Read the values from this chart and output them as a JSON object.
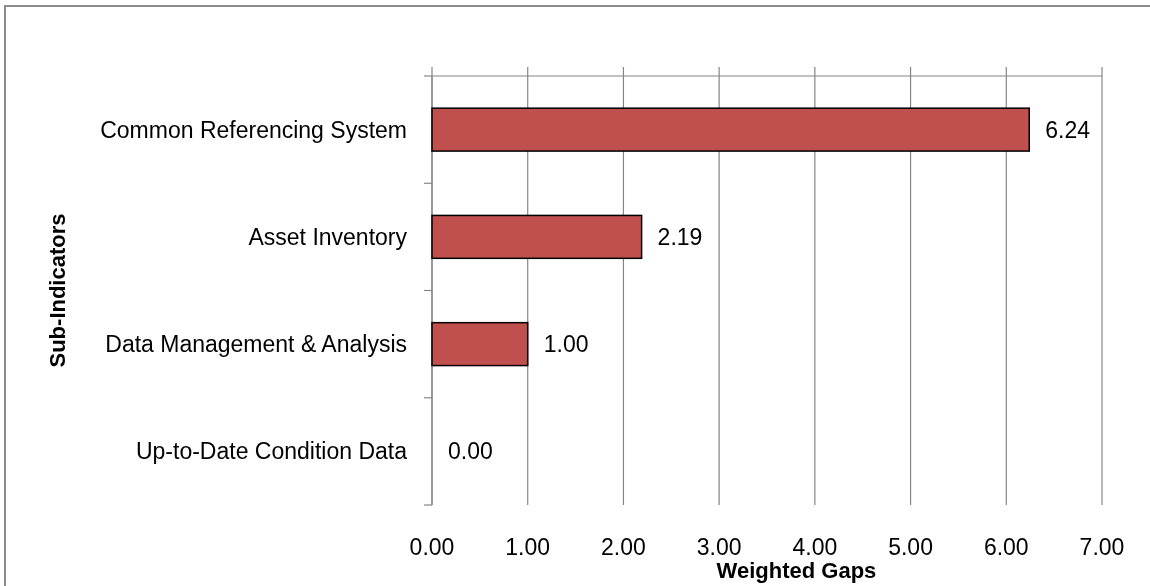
{
  "chart_data": {
    "type": "bar",
    "orientation": "horizontal",
    "xlabel": "Weighted Gaps",
    "ylabel": "Sub-Indicators",
    "categories": [
      "Common Referencing System",
      "Asset Inventory",
      "Data Management & Analysis",
      "Up-to-Date Condition Data"
    ],
    "values": [
      6.24,
      2.19,
      1.0,
      0.0
    ],
    "value_labels": [
      "6.24",
      "2.19",
      "1.00",
      "0.00"
    ],
    "color": "#c0504d",
    "xlim": [
      0,
      7
    ],
    "xticks": [
      {
        "value": 0,
        "label": "0.00"
      },
      {
        "value": 1,
        "label": "1.00"
      },
      {
        "value": 2,
        "label": "2.00"
      },
      {
        "value": 3,
        "label": "3.00"
      },
      {
        "value": 4,
        "label": "4.00"
      },
      {
        "value": 5,
        "label": "5.00"
      },
      {
        "value": 6,
        "label": "6.00"
      },
      {
        "value": 7,
        "label": "7.00"
      }
    ],
    "grid": "x"
  }
}
